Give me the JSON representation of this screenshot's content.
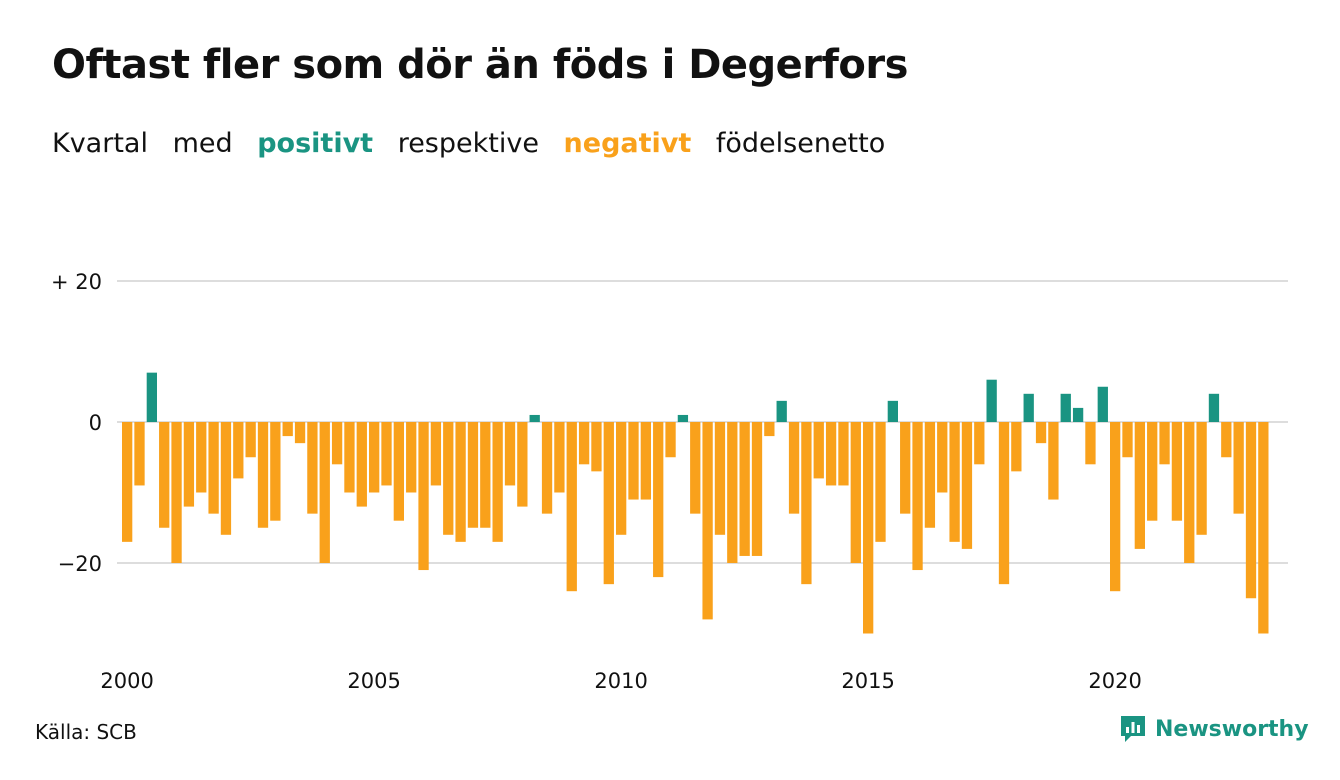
{
  "title": "Oftast fler som dör än föds i Degerfors",
  "subtitle": {
    "part1": "Kvartal",
    "part2": "med",
    "positive": "positivt",
    "part3": "respektive",
    "negative": "negativt",
    "part4": "födelsenetto"
  },
  "colors": {
    "positive": "#1a9482",
    "negative": "#f9a11b",
    "grid": "#dddddd",
    "text": "#111111"
  },
  "source": "Källa: SCB",
  "brand": {
    "name": "Newsworthy",
    "icon": "newsworthy-chart-icon"
  },
  "chart_data": {
    "type": "bar",
    "title": "Oftast fler som dör än föds i Degerfors",
    "xlabel": "",
    "ylabel": "",
    "ylim": [
      -31,
      21
    ],
    "x_start": "2000 Q1",
    "grid": "horizontal",
    "y_ticks": [
      {
        "value": 20,
        "label": "+ 20"
      },
      {
        "value": 0,
        "label": "0"
      },
      {
        "value": -20,
        "label": "−20"
      }
    ],
    "x_ticks": [
      {
        "year": 2000,
        "label": "2000"
      },
      {
        "year": 2005,
        "label": "2005"
      },
      {
        "year": 2010,
        "label": "2010"
      },
      {
        "year": 2015,
        "label": "2015"
      },
      {
        "year": 2020,
        "label": "2020"
      }
    ],
    "values": [
      -17,
      -9,
      7,
      -15,
      -20,
      -12,
      -10,
      -13,
      -16,
      -8,
      -5,
      -15,
      -14,
      -2,
      -3,
      -13,
      -20,
      -6,
      -10,
      -12,
      -10,
      -9,
      -14,
      -10,
      -21,
      -9,
      -16,
      -17,
      -15,
      -15,
      -17,
      -9,
      -12,
      1,
      -13,
      -10,
      -24,
      -6,
      -7,
      -23,
      -16,
      -11,
      -11,
      -22,
      -5,
      1,
      -13,
      -28,
      -16,
      -20,
      -19,
      -19,
      -2,
      3,
      -13,
      -23,
      -8,
      -9,
      -9,
      -20,
      -30,
      -17,
      3,
      -13,
      -21,
      -15,
      -10,
      -17,
      -18,
      -6,
      6,
      -23,
      -7,
      4,
      -3,
      -11,
      4,
      2,
      -6,
      5,
      -24,
      -5,
      -18,
      -14,
      -6,
      -14,
      -20,
      -16,
      4,
      -5,
      -13,
      -25,
      -30
    ]
  }
}
